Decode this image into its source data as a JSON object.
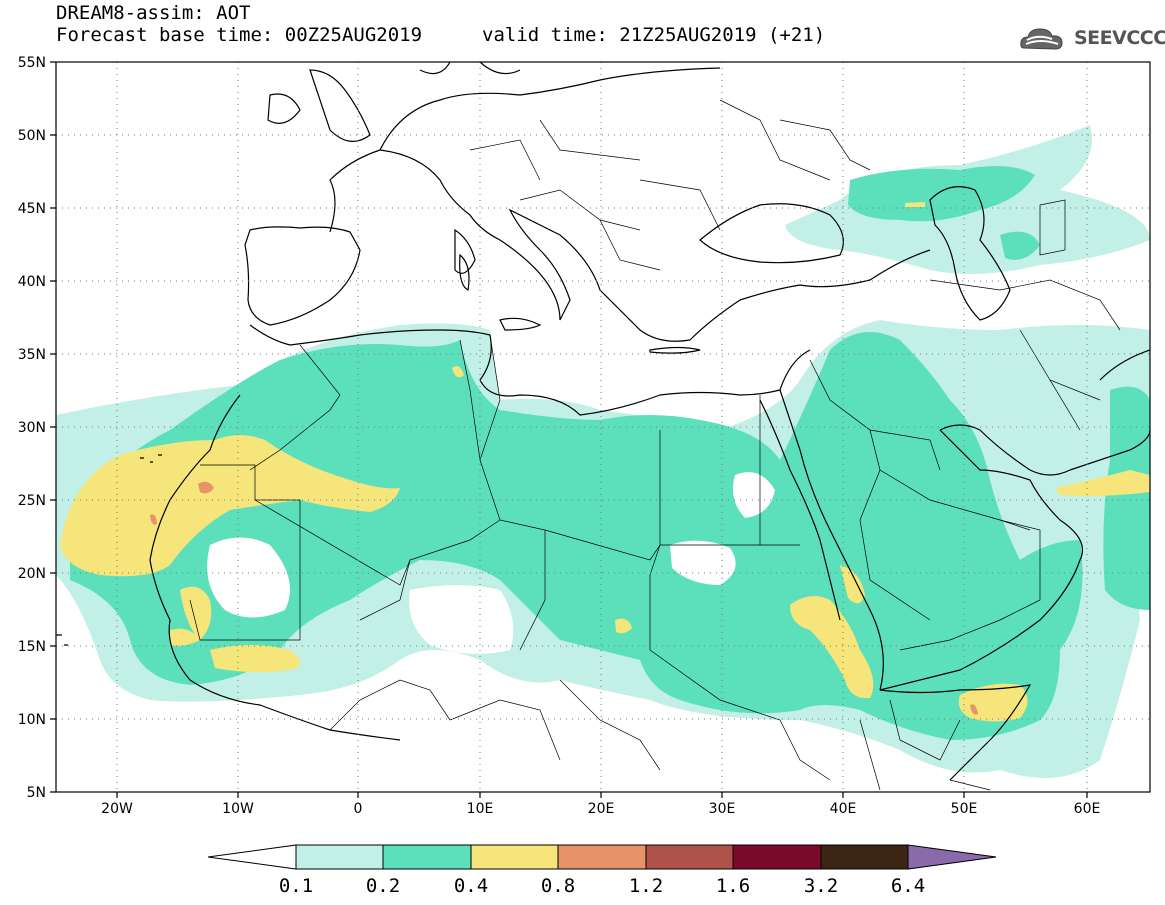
{
  "header": {
    "title": "DREAM8-assim: AOT",
    "base_time": "Forecast base time: 00Z25AUG2019",
    "valid_time": "valid time: 21Z25AUG2019 (+21)",
    "logo_text": "SEEVCCC"
  },
  "map": {
    "lon_range": [
      -25,
      65
    ],
    "lat_range": [
      5,
      55
    ],
    "lon_ticks": [
      "20W",
      "10W",
      "0",
      "10E",
      "20E",
      "30E",
      "40E",
      "50E",
      "60E"
    ],
    "lat_ticks": [
      "55N",
      "50N",
      "45N",
      "40N",
      "35N",
      "30N",
      "25N",
      "20N",
      "15N",
      "10N",
      "5N"
    ]
  },
  "colorbar": {
    "labels": [
      "0.1",
      "0.2",
      "0.4",
      "0.8",
      "1.2",
      "1.6",
      "3.2",
      "6.4"
    ],
    "colors": [
      "#ffffff",
      "#c2f0e6",
      "#5ce0bc",
      "#f5e57a",
      "#e8926a",
      "#b0524a",
      "#7a0a2a",
      "#3d2514",
      "#8a6aaa"
    ]
  }
}
